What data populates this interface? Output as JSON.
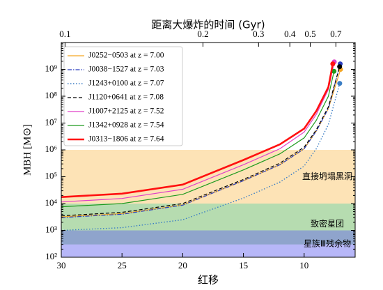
{
  "chart_data": {
    "type": "line",
    "top_axis_label": "距离大爆炸的时间    (Gyr)",
    "top_ticks": [
      0.1,
      0.2,
      0.3,
      0.4,
      0.5,
      0.7
    ],
    "x_label": "红移",
    "y_label": "MBH [M⊙]",
    "xlim": [
      30,
      5.8
    ],
    "xticks": [
      30,
      25,
      20,
      15,
      10
    ],
    "ylim": [
      100,
      10000000000
    ],
    "log_y": true,
    "yticks": [
      {
        "value": 100,
        "label": "10²"
      },
      {
        "value": 1000,
        "label": "10³"
      },
      {
        "value": 10000,
        "label": "10⁴"
      },
      {
        "value": 100000,
        "label": "10⁵"
      },
      {
        "value": 1000000,
        "label": "10⁶"
      },
      {
        "value": 10000000,
        "label": "10⁷"
      },
      {
        "value": 100000000,
        "label": "10⁸"
      },
      {
        "value": 1000000000,
        "label": "10⁹"
      }
    ],
    "legend": "upper left",
    "bands": [
      {
        "label": "直接坍塌黑洞",
        "range": [
          10000,
          1000000
        ],
        "color": "#fde3b6"
      },
      {
        "label": "致密星团",
        "range": [
          300,
          10000
        ],
        "color": "#b6dcb0"
      },
      {
        "label": "星族Ⅲ残余物",
        "range": [
          100,
          1000
        ],
        "color": "rgba(96,96,240,0.45)"
      }
    ],
    "series": [
      {
        "name": "J0252−0503 at z = 7.00",
        "color": "#f5a623",
        "style": "solid",
        "width": 1.2,
        "x": [
          30,
          25,
          20,
          15,
          12,
          10,
          9,
          8,
          7.0
        ],
        "values": [
          3200,
          4200,
          8900,
          71000,
          280000,
          1100000,
          5000000,
          35000000,
          1000000000
        ]
      },
      {
        "name": "J0038−1527 at z = 7.03",
        "color": "#2b3fbf",
        "style": "dashdot",
        "width": 1.2,
        "x": [
          30,
          25,
          20,
          15,
          12,
          10,
          9,
          8,
          7.03
        ],
        "values": [
          3000,
          4000,
          8700,
          71000,
          280000,
          1100000,
          5000000,
          35000000,
          1600000000
        ]
      },
      {
        "name": "J1243+0100 at z = 7.07",
        "color": "#3a7dc4",
        "style": "dotted",
        "width": 1.4,
        "x": [
          30,
          25,
          20,
          15,
          12,
          10,
          9,
          8,
          7.07
        ],
        "values": [
          1000,
          1260,
          2500,
          16000,
          63000,
          250000,
          1100000,
          8900000,
          300000000
        ]
      },
      {
        "name": "J1120+0641 at z = 7.08",
        "color": "#000000",
        "style": "dashed",
        "width": 1.2,
        "x": [
          30,
          25,
          20,
          15,
          12,
          10,
          9,
          8,
          7.08
        ],
        "values": [
          3500,
          4700,
          10000,
          79000,
          320000,
          1260000,
          5600000,
          40000000,
          1260000000
        ]
      },
      {
        "name": "J1007+2125 at z = 7.52",
        "color": "#e040c8",
        "style": "solid",
        "width": 1.2,
        "x": [
          30,
          25,
          20,
          15,
          12,
          10,
          9,
          8,
          7.52
        ],
        "values": [
          11500,
          15500,
          34000,
          280000,
          1100000,
          4600000,
          21000000,
          180000000,
          1900000000
        ]
      },
      {
        "name": "J1342+0928 at z = 7.54",
        "color": "#1e9a1e",
        "style": "solid",
        "width": 1.2,
        "x": [
          30,
          25,
          20,
          15,
          12,
          10,
          9,
          8,
          7.54
        ],
        "values": [
          7600,
          10000,
          22000,
          180000,
          710000,
          2800000,
          12600000,
          100000000,
          850000000
        ]
      },
      {
        "name": "J0313−1806 at z = 7.64",
        "color": "#ff1010",
        "style": "solid",
        "width": 2.6,
        "x": [
          30,
          25,
          20,
          15,
          12,
          10,
          9,
          8,
          7.64
        ],
        "values": [
          17400,
          23400,
          51000,
          420000,
          1600000,
          6200000,
          28000000,
          220000000,
          1600000000
        ]
      }
    ]
  }
}
